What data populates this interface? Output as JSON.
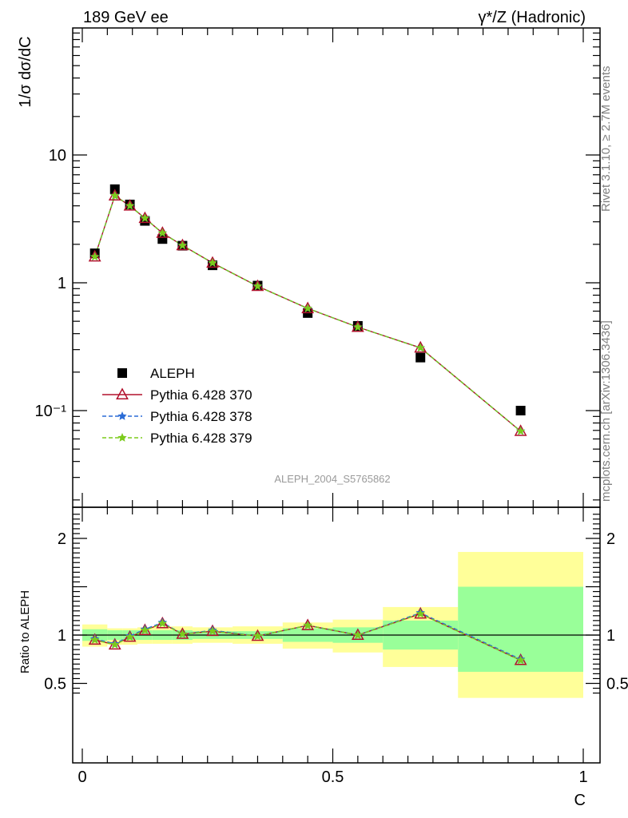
{
  "header": {
    "left": "189 GeV ee",
    "right": "γ*/Z (Hadronic)"
  },
  "side_text": {
    "rivet": "Rivet 3.1.10, ≥ 2.7M events",
    "source": "mcplots.cern.ch [arXiv:1306.3436]"
  },
  "watermark": "ALEPH_2004_S5765862",
  "chart_data": [
    {
      "type": "scatter",
      "panel": "main",
      "ylabel": "1/σ  dσ/dC",
      "yscale": "log",
      "ylim": [
        0.02,
        100
      ],
      "y_ticks": [
        {
          "value": 10,
          "label": "10"
        },
        {
          "value": 1,
          "label": "1"
        },
        {
          "value": 0.1,
          "label": "10⁻¹"
        }
      ],
      "xlim": [
        -0.02,
        1
      ],
      "legend_position": "lower-left",
      "series": [
        {
          "name": "ALEPH",
          "style": "data",
          "color": "#000000",
          "x": [
            0.025,
            0.065,
            0.095,
            0.125,
            0.16,
            0.2,
            0.26,
            0.35,
            0.45,
            0.55,
            0.675,
            0.875
          ],
          "y": [
            1.7,
            5.4,
            4.1,
            3.05,
            2.2,
            1.95,
            1.37,
            0.95,
            0.58,
            0.46,
            0.26,
            0.1
          ]
        },
        {
          "name": "Pythia 6.428 370",
          "style": "triangle",
          "color": "#b2102c",
          "x": [
            0.025,
            0.065,
            0.095,
            0.125,
            0.16,
            0.2,
            0.26,
            0.35,
            0.45,
            0.55,
            0.675,
            0.875
          ],
          "y": [
            1.6,
            4.8,
            4.0,
            3.2,
            2.45,
            1.96,
            1.43,
            0.94,
            0.63,
            0.45,
            0.31,
            0.069
          ]
        },
        {
          "name": "Pythia 6.428 378",
          "style": "star",
          "color": "#2b6cd6",
          "x": [
            0.025,
            0.065,
            0.095,
            0.125,
            0.16,
            0.2,
            0.26,
            0.35,
            0.45,
            0.55,
            0.675,
            0.875
          ],
          "y": [
            1.6,
            4.8,
            4.0,
            3.2,
            2.45,
            1.96,
            1.43,
            0.94,
            0.63,
            0.45,
            0.31,
            0.069
          ]
        },
        {
          "name": "Pythia 6.428 379",
          "style": "star",
          "color": "#7ccb1c",
          "x": [
            0.025,
            0.065,
            0.095,
            0.125,
            0.16,
            0.2,
            0.26,
            0.35,
            0.45,
            0.55,
            0.675,
            0.875
          ],
          "y": [
            1.6,
            4.8,
            4.0,
            3.2,
            2.45,
            1.96,
            1.43,
            0.94,
            0.63,
            0.45,
            0.31,
            0.069
          ]
        }
      ]
    },
    {
      "type": "line",
      "panel": "ratio",
      "ylabel": "Ratio to ALEPH",
      "xlabel": "C",
      "ylim": [
        0.35,
        2.3
      ],
      "xlim": [
        -0.02,
        1
      ],
      "x_ticks": [
        {
          "value": 0,
          "label": "0"
        },
        {
          "value": 0.5,
          "label": "0.5"
        },
        {
          "value": 1,
          "label": "1"
        }
      ],
      "y_ticks": [
        {
          "value": 2,
          "label": "2"
        },
        {
          "value": 1,
          "label": "1"
        },
        {
          "value": 0.5,
          "label": "0.5"
        }
      ],
      "reference_line": 1,
      "bands": [
        {
          "x0": 0.0,
          "x1": 0.05,
          "inner": [
            0.94,
            1.06
          ],
          "outer": [
            0.88,
            1.11
          ]
        },
        {
          "x0": 0.05,
          "x1": 0.08,
          "inner": [
            0.95,
            1.05
          ],
          "outer": [
            0.9,
            1.07
          ]
        },
        {
          "x0": 0.08,
          "x1": 0.11,
          "inner": [
            0.95,
            1.05
          ],
          "outer": [
            0.9,
            1.07
          ]
        },
        {
          "x0": 0.11,
          "x1": 0.14,
          "inner": [
            0.95,
            1.05
          ],
          "outer": [
            0.91,
            1.08
          ]
        },
        {
          "x0": 0.14,
          "x1": 0.18,
          "inner": [
            0.95,
            1.05
          ],
          "outer": [
            0.91,
            1.09
          ]
        },
        {
          "x0": 0.18,
          "x1": 0.22,
          "inner": [
            0.95,
            1.05
          ],
          "outer": [
            0.91,
            1.09
          ]
        },
        {
          "x0": 0.22,
          "x1": 0.3,
          "inner": [
            0.96,
            1.04
          ],
          "outer": [
            0.92,
            1.08
          ]
        },
        {
          "x0": 0.3,
          "x1": 0.4,
          "inner": [
            0.96,
            1.04
          ],
          "outer": [
            0.91,
            1.09
          ]
        },
        {
          "x0": 0.4,
          "x1": 0.5,
          "inner": [
            0.93,
            1.07
          ],
          "outer": [
            0.86,
            1.13
          ]
        },
        {
          "x0": 0.5,
          "x1": 0.6,
          "inner": [
            0.92,
            1.08
          ],
          "outer": [
            0.82,
            1.16
          ]
        },
        {
          "x0": 0.6,
          "x1": 0.75,
          "inner": [
            0.85,
            1.15
          ],
          "outer": [
            0.67,
            1.29
          ]
        },
        {
          "x0": 0.75,
          "x1": 1.0,
          "inner": [
            0.62,
            1.5
          ],
          "outer": [
            0.35,
            1.86
          ]
        }
      ],
      "series": [
        {
          "name": "Pythia 6.428 370",
          "style": "triangle",
          "color": "#b2102c",
          "x": [
            0.025,
            0.065,
            0.095,
            0.125,
            0.16,
            0.2,
            0.26,
            0.35,
            0.45,
            0.55,
            0.675,
            0.875
          ],
          "y": [
            0.95,
            0.9,
            0.98,
            1.05,
            1.12,
            1.01,
            1.04,
            0.99,
            1.1,
            1.0,
            1.22,
            0.74
          ]
        },
        {
          "name": "Pythia 6.428 378",
          "style": "star",
          "color": "#2b6cd6",
          "x": [
            0.025,
            0.065,
            0.095,
            0.125,
            0.16,
            0.2,
            0.26,
            0.35,
            0.45,
            0.55,
            0.675,
            0.875
          ],
          "y": [
            0.96,
            0.91,
            0.99,
            1.06,
            1.13,
            1.01,
            1.05,
            0.99,
            1.1,
            1.0,
            1.23,
            0.75
          ]
        },
        {
          "name": "Pythia 6.428 379",
          "style": "star",
          "color": "#7ccb1c",
          "x": [
            0.025,
            0.065,
            0.095,
            0.125,
            0.16,
            0.2,
            0.26,
            0.35,
            0.45,
            0.55,
            0.675,
            0.875
          ],
          "y": [
            0.95,
            0.9,
            0.98,
            1.05,
            1.12,
            1.01,
            1.04,
            0.99,
            1.1,
            1.0,
            1.22,
            0.74
          ]
        }
      ]
    }
  ]
}
